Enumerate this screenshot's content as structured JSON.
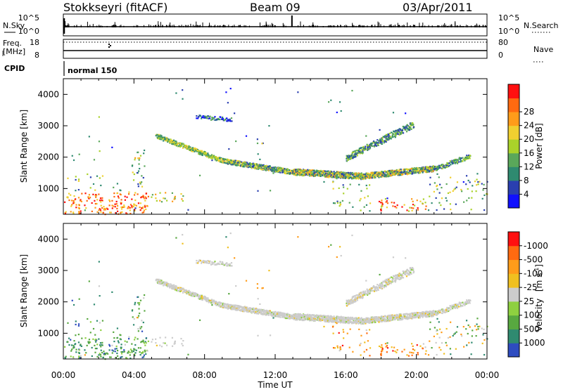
{
  "header": {
    "station": "Stokkseyri (fitACF)",
    "beam": "Beam 09",
    "date": "03/Apr/2011"
  },
  "strips": {
    "nsky_label": "N.Sky",
    "nsky_ticks": [
      "10^5",
      "10^0"
    ],
    "nsearch_label": "N.Search",
    "nsearch_ticks": [
      "10^5",
      "10^0"
    ],
    "freq_label_1": "Freq.",
    "freq_label_2": "[MHz]",
    "freq_ticks": [
      "18",
      "8"
    ],
    "nave_label": "Nave",
    "nave_ticks": [
      "80",
      "0"
    ],
    "cpid_label": "CPID",
    "cpid_value": "normal 150"
  },
  "chart_data": [
    {
      "type": "heatmap",
      "panel": "power",
      "ylabel": "Slant Range [km]",
      "xlabel": "Time UT",
      "x_ticks": [
        "00:00",
        "04:00",
        "08:00",
        "12:00",
        "16:00",
        "20:00",
        "00:00"
      ],
      "x_range_hours": [
        0,
        24
      ],
      "y_ticks": [
        1000,
        2000,
        3000,
        4000
      ],
      "ylim": [
        180,
        4500
      ],
      "colorbar": {
        "label": "Power [dB]",
        "tick_labels": [
          "4",
          "8",
          "12",
          "16",
          "20",
          "24",
          "28"
        ],
        "colors": [
          "#1010ff",
          "#2a3fb0",
          "#2f8a70",
          "#5aa75a",
          "#aad22a",
          "#f0d030",
          "#ff9c1a",
          "#ff6a10",
          "#ff1010"
        ]
      }
    },
    {
      "type": "heatmap",
      "panel": "velocity",
      "ylabel": "Slant Range [km]",
      "xlabel": "Time UT",
      "x_ticks": [
        "00:00",
        "04:00",
        "08:00",
        "12:00",
        "16:00",
        "20:00",
        "00:00"
      ],
      "x_range_hours": [
        0,
        24
      ],
      "y_ticks": [
        1000,
        2000,
        3000,
        4000
      ],
      "ylim": [
        180,
        4500
      ],
      "colorbar": {
        "label_main": "Velocity",
        "label_unit": "[m s",
        "label_sup": "-1",
        "label_close": "]",
        "tick_labels": [
          "1000",
          "500",
          "100",
          "25",
          "-25",
          "-100",
          "-500",
          "-1000"
        ],
        "colors": [
          "#2e4cc0",
          "#2f8a70",
          "#58a840",
          "#8ed040",
          "#cccccc",
          "#f0c020",
          "#ff9c1a",
          "#ff6a10",
          "#ff1010"
        ]
      }
    }
  ],
  "xaxis_title": "Time UT"
}
